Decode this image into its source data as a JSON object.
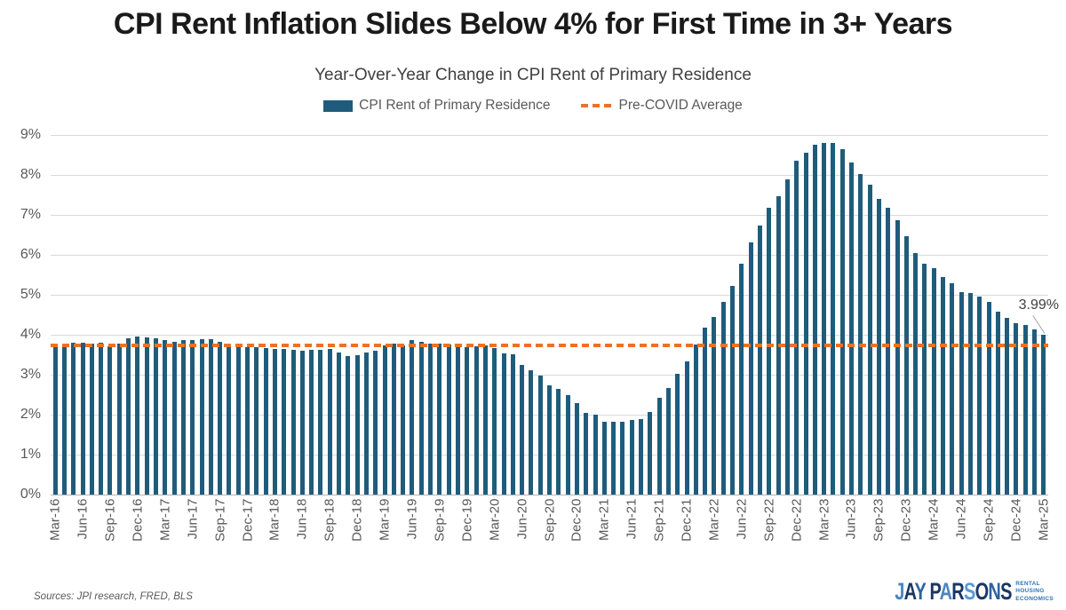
{
  "title": "CPI Rent Inflation Slides Below 4% for First Time in 3+ Years",
  "subtitle": "Year-Over-Year Change in CPI Rent of Primary Residence",
  "legend": {
    "series_label": "CPI Rent of Primary Residence",
    "avg_label": "Pre-COVID Average"
  },
  "annotation": {
    "label": "3.99%"
  },
  "footer": {
    "sources": "Sources: JPI research, FRED, BLS",
    "logo_text": "JAY PARSONS",
    "logo_sub_lines": [
      "RENTAL",
      "HOUSING",
      "ECONOMICS"
    ]
  },
  "colors": {
    "bar": "#1F5C7C",
    "avg_line": "#ED7124",
    "gridline": "#D9D9D9",
    "axis_labels": "#595959",
    "title": "#1A1A1A",
    "subtitle": "#3F3F3F",
    "annotation": "#404040",
    "leader": "#A6A6A6",
    "logo_navy": "#1B3764",
    "logo_blue": "#4C86C0",
    "logo_mid_blue": "#2C639F",
    "logo_light_blue": "#5B9BD5"
  },
  "logo_letter_colors": [
    "#4C86C0",
    "#1B3764",
    "#2C639F",
    "",
    "#1B3764",
    "#4C86C0",
    "#1B3764",
    "#5B9BD5",
    "#1B3764",
    "#2C639F",
    "#1B3764"
  ],
  "chart_data": {
    "type": "bar",
    "title": "Year-Over-Year Change in CPI Rent of Primary Residence",
    "series_name": "CPI Rent of Primary Residence",
    "xlabel": "",
    "ylabel": "",
    "ylim": [
      0,
      9
    ],
    "y_ticks": [
      "0%",
      "1%",
      "2%",
      "3%",
      "4%",
      "5%",
      "6%",
      "7%",
      "8%",
      "9%"
    ],
    "x_label_every": 3,
    "grid": "horizontal",
    "legend_position": "top-center",
    "reference_line": {
      "name": "Pre-COVID Average",
      "value": 3.74,
      "style": "dashed"
    },
    "last_point_annotation": {
      "text": "3.99%",
      "month": "Mar-25",
      "value": 3.99
    },
    "x": [
      "Mar-16",
      "Apr-16",
      "May-16",
      "Jun-16",
      "Jul-16",
      "Aug-16",
      "Sep-16",
      "Oct-16",
      "Nov-16",
      "Dec-16",
      "Jan-17",
      "Feb-17",
      "Mar-17",
      "Apr-17",
      "May-17",
      "Jun-17",
      "Jul-17",
      "Aug-17",
      "Sep-17",
      "Oct-17",
      "Nov-17",
      "Dec-17",
      "Jan-18",
      "Feb-18",
      "Mar-18",
      "Apr-18",
      "May-18",
      "Jun-18",
      "Jul-18",
      "Aug-18",
      "Sep-18",
      "Oct-18",
      "Nov-18",
      "Dec-18",
      "Jan-19",
      "Feb-19",
      "Mar-19",
      "Apr-19",
      "May-19",
      "Jun-19",
      "Jul-19",
      "Aug-19",
      "Sep-19",
      "Oct-19",
      "Nov-19",
      "Dec-19",
      "Jan-20",
      "Feb-20",
      "Mar-20",
      "Apr-20",
      "May-20",
      "Jun-20",
      "Jul-20",
      "Aug-20",
      "Sep-20",
      "Oct-20",
      "Nov-20",
      "Dec-20",
      "Jan-21",
      "Feb-21",
      "Mar-21",
      "Apr-21",
      "May-21",
      "Jun-21",
      "Jul-21",
      "Aug-21",
      "Sep-21",
      "Oct-21",
      "Nov-21",
      "Dec-21",
      "Jan-22",
      "Feb-22",
      "Mar-22",
      "Apr-22",
      "May-22",
      "Jun-22",
      "Jul-22",
      "Aug-22",
      "Sep-22",
      "Oct-22",
      "Nov-22",
      "Dec-22",
      "Jan-23",
      "Feb-23",
      "Mar-23",
      "Apr-23",
      "May-23",
      "Jun-23",
      "Jul-23",
      "Aug-23",
      "Sep-23",
      "Oct-23",
      "Nov-23",
      "Dec-23",
      "Jan-24",
      "Feb-24",
      "Mar-24",
      "Apr-24",
      "May-24",
      "Jun-24",
      "Jul-24",
      "Aug-24",
      "Sep-24",
      "Oct-24",
      "Nov-24",
      "Dec-24",
      "Jan-25",
      "Feb-25",
      "Mar-25"
    ],
    "values": [
      3.68,
      3.74,
      3.8,
      3.79,
      3.77,
      3.8,
      3.72,
      3.77,
      3.91,
      3.96,
      3.93,
      3.92,
      3.87,
      3.82,
      3.86,
      3.86,
      3.89,
      3.88,
      3.82,
      3.76,
      3.69,
      3.68,
      3.68,
      3.67,
      3.64,
      3.65,
      3.62,
      3.61,
      3.63,
      3.63,
      3.64,
      3.56,
      3.47,
      3.5,
      3.55,
      3.6,
      3.73,
      3.78,
      3.73,
      3.86,
      3.83,
      3.78,
      3.78,
      3.75,
      3.71,
      3.7,
      3.72,
      3.74,
      3.67,
      3.54,
      3.51,
      3.24,
      3.12,
      2.97,
      2.73,
      2.64,
      2.48,
      2.28,
      2.05,
      1.99,
      1.83,
      1.82,
      1.82,
      1.87,
      1.9,
      2.07,
      2.43,
      2.66,
      3.02,
      3.33,
      3.76,
      4.17,
      4.44,
      4.82,
      5.22,
      5.78,
      6.31,
      6.74,
      7.18,
      7.47,
      7.9,
      8.35,
      8.56,
      8.76,
      8.81,
      8.81,
      8.65,
      8.32,
      8.03,
      7.76,
      7.41,
      7.18,
      6.87,
      6.47,
      6.05,
      5.77,
      5.66,
      5.44,
      5.3,
      5.07,
      5.05,
      4.95,
      4.83,
      4.58,
      4.42,
      4.28,
      4.24,
      4.13,
      3.99
    ]
  }
}
